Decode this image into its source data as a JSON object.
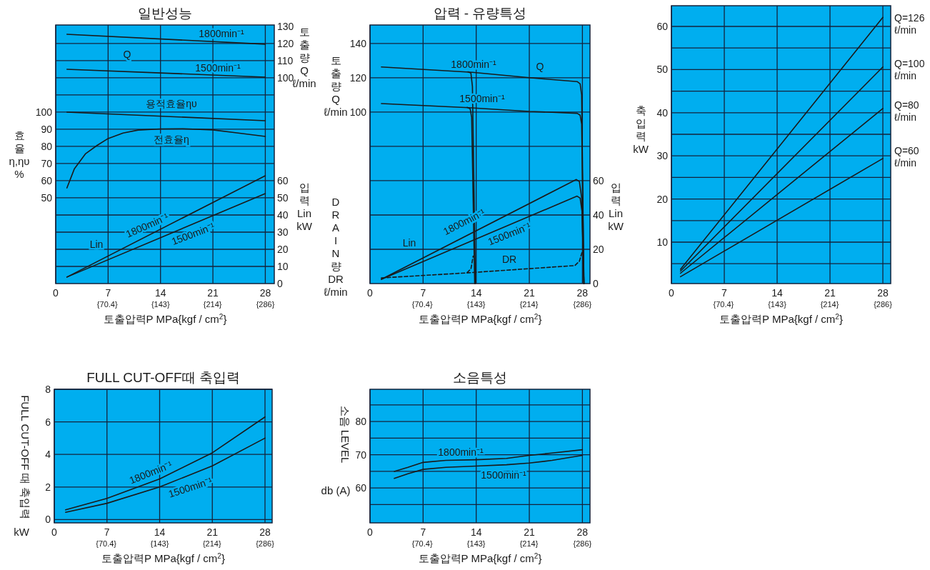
{
  "chart_data": [
    {
      "type": "line",
      "title": "일반성능",
      "xlabel": "토출압력P MPa{kgf / cm$^{2}$}",
      "ylabel": "효율\nη,ηυ\n%",
      "y2label": "입력\nLin\nkW",
      "y3label": "토출량\nQ\nℓ/min",
      "grid": true,
      "xlim": [
        0,
        29.2
      ],
      "xticks": [
        0,
        7,
        14,
        21,
        28
      ],
      "x2lim": [
        0,
        298.2
      ],
      "x2ticks": [
        {
          "value": 70.4,
          "label": "{70.4}"
        },
        {
          "value": 143,
          "label": "{143}"
        },
        {
          "value": 214,
          "label": "{214}"
        },
        {
          "value": 286,
          "label": "{286}"
        }
      ],
      "ylim": [
        0,
        150.8
      ],
      "yticks": [
        {
          "value": 10,
          "label": null
        },
        {
          "value": 20,
          "label": null
        },
        {
          "value": 30,
          "label": null
        },
        {
          "value": 40,
          "label": null
        },
        50,
        60,
        70,
        80,
        90,
        100,
        {
          "value": 110,
          "label": null
        },
        {
          "value": 120,
          "label": null
        },
        {
          "value": 130,
          "label": null
        },
        {
          "value": 140,
          "label": null
        }
      ],
      "y2lim": [
        0,
        150.8
      ],
      "y2ticks": [
        0,
        10,
        20,
        30,
        40,
        50,
        60
      ],
      "y3lim": [
        -20,
        130.8
      ],
      "y3ticks": [
        100,
        110,
        120,
        130
      ],
      "series": [
        {
          "color": "#1a1a1a",
          "axis": "y3",
          "x": [
            1.5,
            28
          ],
          "values": [
            125.4,
            119.6
          ]
        },
        {
          "color": "#1a1a1a",
          "axis": "y3",
          "x": [
            1.5,
            28
          ],
          "values": [
            105,
            100.4
          ]
        },
        {
          "color": "#1a1a1a",
          "axis": "y",
          "x": [
            1.5,
            28
          ],
          "values": [
            100,
            95
          ]
        },
        {
          "color": "#1a1a1a",
          "axis": "y",
          "x": [
            1.5,
            2.5,
            4,
            5.5,
            7,
            9,
            11,
            14,
            17,
            21,
            24,
            28
          ],
          "values": [
            55.8,
            67,
            75.8,
            80.5,
            84.6,
            87.8,
            89.5,
            90.2,
            90.3,
            89.6,
            88,
            85.8
          ]
        },
        {
          "color": "#1a1a1a",
          "axis": "y2",
          "x": [
            1.5,
            28
          ],
          "values": [
            3.8,
            62.9
          ]
        },
        {
          "color": "#1a1a1a",
          "axis": "y2",
          "x": [
            1.5,
            28
          ],
          "values": [
            3.8,
            52.5
          ]
        }
      ],
      "annotations": [
        "1800min⁻¹",
        "Q",
        "1500min⁻¹",
        "용적효율ηυ",
        "전효율η",
        "Lin",
        "1800min⁻¹",
        "1500min⁻¹"
      ]
    },
    {
      "type": "line",
      "title": "압력 - 유량특성",
      "xlabel": "토출압력P MPa{kgf / cm$^{2}$}",
      "ylabel": "토출량\nQ\nℓ/min",
      "y2label": "입력\nLin\nkW",
      "y3label": "DRAIN량\nDR\nℓ/min",
      "grid": true,
      "xlim": [
        0,
        29.0
      ],
      "xticks": [
        0,
        7,
        14,
        21,
        28
      ],
      "x2lim": [
        0,
        296.2
      ],
      "x2ticks": [
        {
          "value": 70.4,
          "label": "{70.4}"
        },
        {
          "value": 143,
          "label": "{143}"
        },
        {
          "value": 214,
          "label": "{214}"
        },
        {
          "value": 286,
          "label": "{286}"
        }
      ],
      "ylim": [
        0,
        150.8
      ],
      "yticks": [
        {
          "value": 20,
          "label": null
        },
        {
          "value": 40,
          "label": null
        },
        {
          "value": 60,
          "label": null
        },
        {
          "value": 80,
          "label": null
        },
        100,
        120,
        140
      ],
      "y2lim": [
        0,
        150.8
      ],
      "y2ticks": [
        0,
        20,
        40,
        60
      ],
      "series": [
        {
          "color": "#1a1a1a",
          "axis": "y",
          "x": [
            1.5,
            13.5,
            21,
            27.3,
            27.7,
            27.9,
            28.2
          ],
          "values": [
            126.3,
            123.2,
            120.1,
            117.8,
            116.5,
            110,
            0
          ]
        },
        {
          "color": "#1a1a1a",
          "axis": "y",
          "x": [
            12.9,
            13.3,
            13.5,
            13.9
          ],
          "values": [
            123.5,
            122.8,
            115,
            0
          ]
        },
        {
          "color": "#1a1a1a",
          "axis": "y",
          "x": [
            1.5,
            13,
            21,
            27.3,
            27.7,
            27.9,
            28.2
          ],
          "values": [
            105,
            102.6,
            100.4,
            99.3,
            98.2,
            93,
            0
          ]
        },
        {
          "color": "#1a1a1a",
          "axis": "y",
          "x": [
            12.8,
            13.2,
            13.4,
            13.8
          ],
          "values": [
            102.8,
            102,
            97,
            0
          ]
        },
        {
          "color": "#1a1a1a",
          "axis": "y2",
          "x": [
            1.5,
            27.2,
            27.6,
            27.9,
            28.2
          ],
          "values": [
            2.5,
            60.7,
            59.5,
            50,
            0
          ]
        },
        {
          "color": "#1a1a1a",
          "axis": "y2",
          "x": [
            1.5,
            27.3,
            27.7,
            27.95,
            28.2
          ],
          "values": [
            2.5,
            51,
            49.8,
            42,
            0
          ]
        },
        {
          "color": "#1a1a1a",
          "axis": "y2",
          "line_style": "dashed",
          "x": [
            1.5,
            13,
            27,
            27.6,
            28
          ],
          "values": [
            3.3,
            6.3,
            10.5,
            13,
            19
          ]
        },
        {
          "color": "#1a1a1a",
          "axis": "y2",
          "line_style": "dashed",
          "x": [
            12.8,
            13.3,
            13.6
          ],
          "values": [
            6.4,
            8.5,
            16
          ]
        }
      ],
      "annotations": [
        "1800min⁻¹",
        "Q",
        "1500min⁻¹",
        "Lin",
        "1800min⁻¹",
        "1500min⁻¹",
        "DR"
      ]
    },
    {
      "type": "line",
      "xlabel": "토출압력P MPa{kgf / cm$^{2}$}",
      "ylabel": "축입력\nkW",
      "grid": true,
      "xlim": [
        0,
        29.04
      ],
      "xticks": [
        0,
        7,
        14,
        21,
        28
      ],
      "x2lim": [
        0,
        296.6
      ],
      "x2ticks": [
        {
          "value": 70.4,
          "label": "{70.4}"
        },
        {
          "value": 143,
          "label": "{143}"
        },
        {
          "value": 214,
          "label": "{214}"
        },
        {
          "value": 286,
          "label": "{286}"
        }
      ],
      "ylim": [
        0.4,
        64.8
      ],
      "yticks": [
        {
          "value": 5,
          "label": null
        },
        10,
        {
          "value": 15,
          "label": null
        },
        20,
        {
          "value": 25,
          "label": null
        },
        30,
        {
          "value": 35,
          "label": null
        },
        40,
        {
          "value": 45,
          "label": null
        },
        50,
        {
          "value": 55,
          "label": null
        },
        60
      ],
      "series": [
        {
          "color": "#1a1a1a",
          "x": [
            1.2,
            28
          ],
          "values": [
            3.7,
            62.1
          ]
        },
        {
          "color": "#1a1a1a",
          "x": [
            1.2,
            28
          ],
          "values": [
            3.3,
            50.6
          ]
        },
        {
          "color": "#1a1a1a",
          "x": [
            1.2,
            28
          ],
          "values": [
            2.8,
            41
          ]
        },
        {
          "color": "#1a1a1a",
          "x": [
            1.2,
            28
          ],
          "values": [
            2.0,
            29.4
          ]
        }
      ],
      "annotations": [
        "Q=126\nℓ/min",
        "Q=100\nℓ/min",
        "Q=80\nℓ/min",
        "Q=60\nℓ/min"
      ]
    },
    {
      "type": "line",
      "title": "FULL CUT-OFF때 축입력",
      "xlabel": "토출압력P MPa{kgf / cm$^{2}$}",
      "ylabel": "FULL CUT-OFF 때 축입력\nkW",
      "grid": true,
      "xlim": [
        0,
        28.95
      ],
      "xticks": [
        0,
        7,
        14,
        21,
        28
      ],
      "x2lim": [
        0,
        295.7
      ],
      "x2ticks": [
        {
          "value": 70.4,
          "label": "{70.4}"
        },
        {
          "value": 143,
          "label": "{143}"
        },
        {
          "value": 214,
          "label": "{214}"
        },
        {
          "value": 286,
          "label": "{286}"
        }
      ],
      "ylim": [
        -0.2,
        8
      ],
      "yticks": [
        0,
        2,
        4,
        6,
        8
      ],
      "series": [
        {
          "color": "#1a1a1a",
          "x": [
            1.5,
            7,
            14,
            21,
            28
          ],
          "values": [
            0.6,
            1.3,
            2.5,
            4.1,
            6.3
          ]
        },
        {
          "color": "#1a1a1a",
          "x": [
            1.5,
            7,
            14,
            21,
            28
          ],
          "values": [
            0.45,
            1.0,
            2.0,
            3.3,
            5.0
          ]
        }
      ],
      "annotations": [
        "1800min⁻¹",
        "1500min⁻¹"
      ]
    },
    {
      "type": "line",
      "title": "소음특성",
      "xlabel": "토출압력P MPa{kgf / cm$^{2}$}",
      "ylabel": "소음 LEVEL\ndb (A)",
      "grid": true,
      "xlim": [
        0,
        29.0
      ],
      "xticks": [
        0,
        7,
        14,
        21,
        28
      ],
      "x2lim": [
        0,
        296.2
      ],
      "x2ticks": [
        {
          "value": 70.4,
          "label": "{70.4}"
        },
        {
          "value": 143,
          "label": "{143}"
        },
        {
          "value": 214,
          "label": "{214}"
        },
        {
          "value": 286,
          "label": "{286}"
        }
      ],
      "ylim": [
        49.5,
        89.7
      ],
      "yticks": [
        {
          "value": 55,
          "label": null
        },
        60,
        {
          "value": 65,
          "label": null
        },
        70,
        {
          "value": 75,
          "label": null
        },
        80,
        {
          "value": 85,
          "label": null
        }
      ],
      "series": [
        {
          "color": "#1a1a1a",
          "x": [
            3.2,
            5,
            7,
            10,
            14,
            18,
            21,
            24,
            28
          ],
          "values": [
            65,
            66.2,
            67.7,
            68.3,
            68.5,
            68.9,
            69.8,
            70.5,
            71.5
          ]
        },
        {
          "color": "#1a1a1a",
          "x": [
            3.2,
            5,
            7,
            10,
            14,
            18,
            21,
            24,
            28
          ],
          "values": [
            62.9,
            64.3,
            65.6,
            66.2,
            66.6,
            67,
            67.5,
            68.3,
            69.8
          ]
        }
      ],
      "annotations": [
        "1800min⁻¹",
        "1500min⁻¹"
      ]
    }
  ]
}
